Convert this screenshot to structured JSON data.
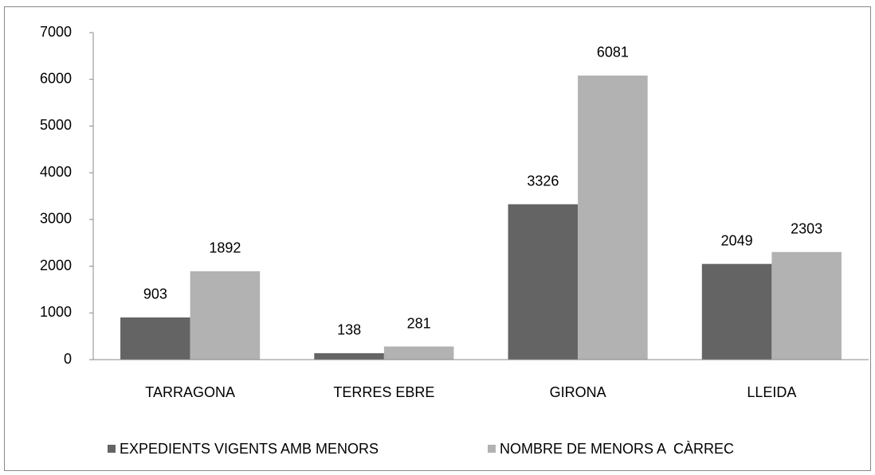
{
  "chart_data": {
    "type": "bar",
    "categories": [
      "TARRAGONA",
      "TERRES EBRE",
      "GIRONA",
      "LLEIDA"
    ],
    "series": [
      {
        "name": "EXPEDIENTS VIGENTS AMB MENORS",
        "color": "#646464",
        "values": [
          903,
          138,
          3326,
          2049
        ]
      },
      {
        "name": "NOMBRE DE MENORS A  CÀRREC",
        "color": "#b2b2b2",
        "values": [
          1892,
          281,
          6081,
          2303
        ]
      }
    ],
    "ylim": [
      0,
      7000
    ],
    "yticks": [
      0,
      1000,
      2000,
      3000,
      4000,
      5000,
      6000,
      7000
    ],
    "legend": "bottom"
  }
}
